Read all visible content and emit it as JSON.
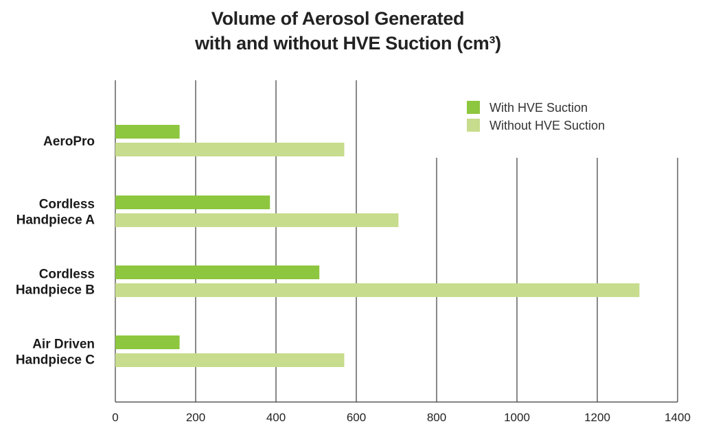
{
  "chart_data": {
    "type": "bar",
    "orientation": "horizontal",
    "title": "Volume of Aerosol Generated with and without HVE Suction (cm³)",
    "title_lines": [
      "Volume of Aerosol Generated",
      "with and without HVE Suction (cm³)"
    ],
    "categories": [
      [
        "AeroPro"
      ],
      [
        "Cordless",
        "Handpiece A"
      ],
      [
        "Cordless",
        "Handpiece B"
      ],
      [
        "Air Driven",
        "Handpiece C"
      ]
    ],
    "series": [
      {
        "name": "With HVE Suction",
        "color": "#8dc63f",
        "values": [
          160,
          385,
          508,
          160
        ]
      },
      {
        "name": "Without HVE Suction",
        "color": "#c7dc8c",
        "values": [
          570,
          705,
          1305,
          570
        ]
      }
    ],
    "xlim": [
      0,
      1400
    ],
    "x_ticks": [
      "0",
      "200",
      "400",
      "600",
      "800",
      "1000",
      "1200",
      "1400"
    ],
    "grid": "vertical",
    "legend_position": "top-right"
  }
}
